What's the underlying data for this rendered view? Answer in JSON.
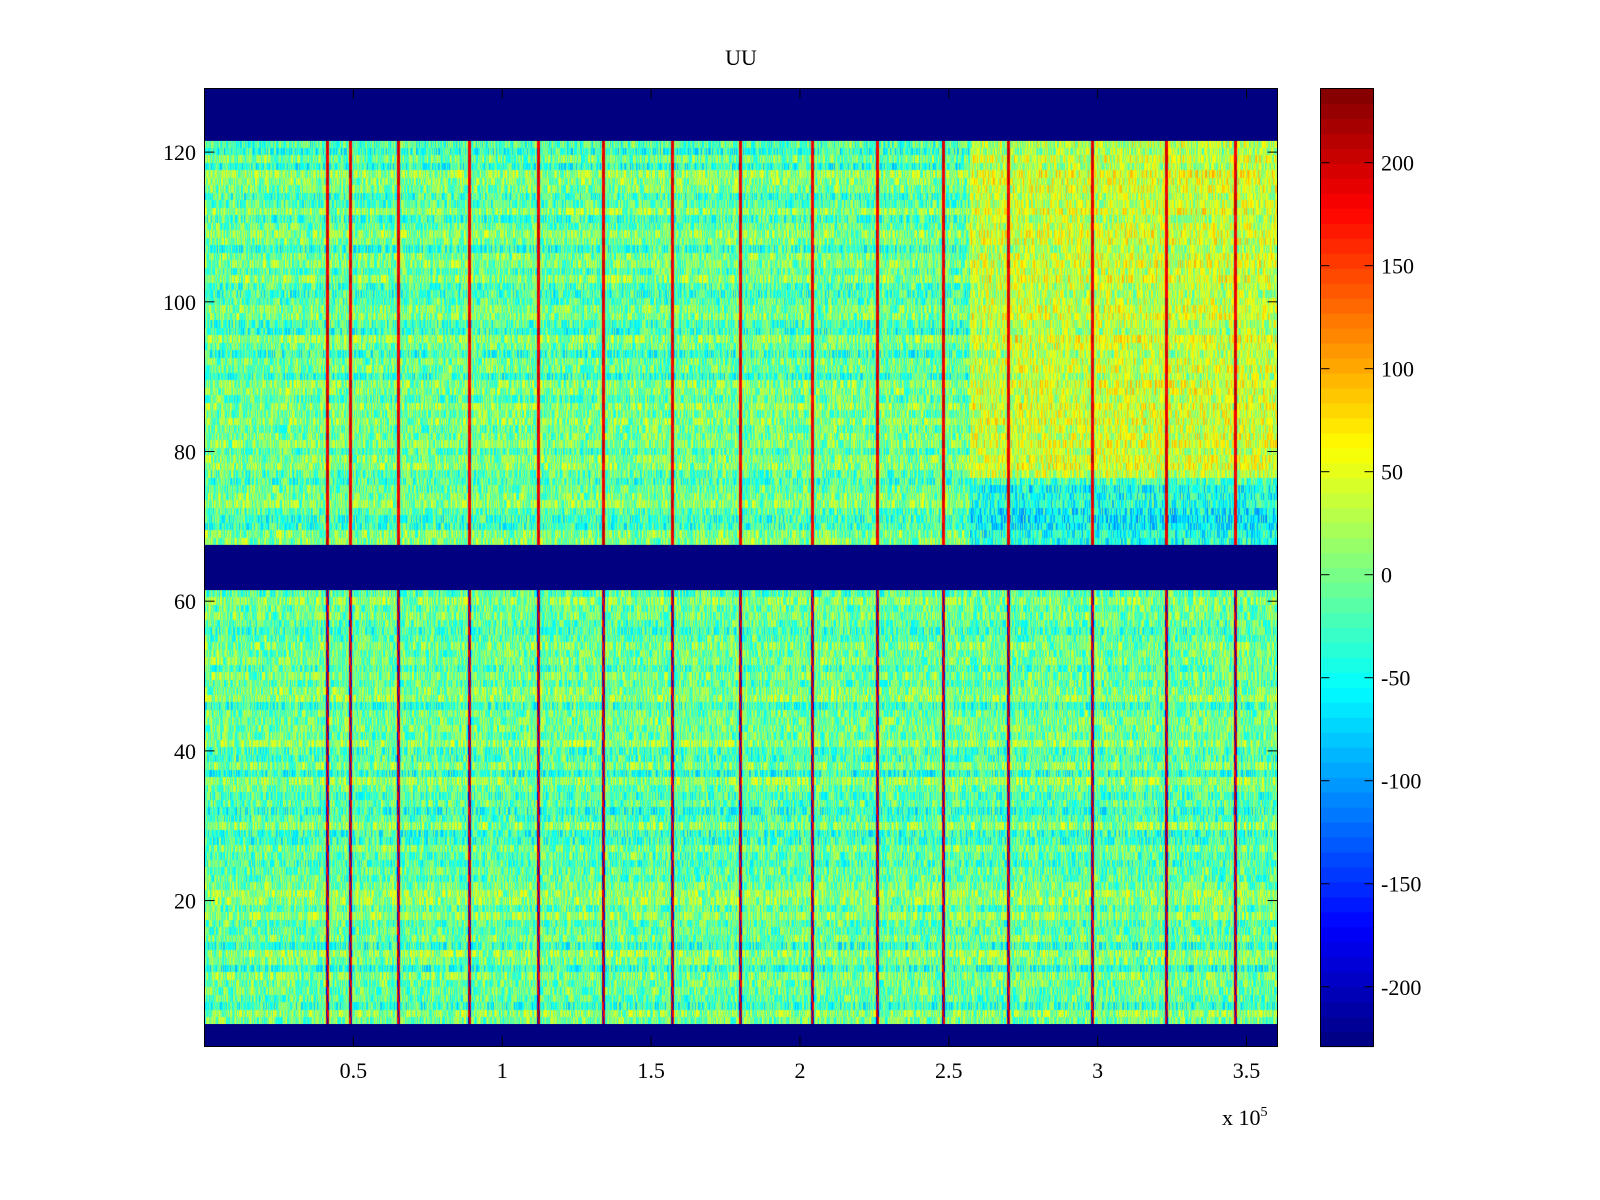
{
  "chart_data": {
    "type": "heatmap",
    "title": "UU",
    "xlabel": "",
    "ylabel": "",
    "x_exponent_label": {
      "base": "x 10",
      "exp": "5"
    },
    "xlim": [
      0,
      360400
    ],
    "ylim": [
      0.5,
      128.5
    ],
    "x_ticks": [
      50000,
      100000,
      150000,
      200000,
      250000,
      300000,
      350000
    ],
    "x_tick_labels": [
      "0.5",
      "1",
      "1.5",
      "2",
      "2.5",
      "3",
      "3.5"
    ],
    "y_ticks": [
      20,
      40,
      60,
      80,
      100,
      120
    ],
    "y_tick_labels": [
      "20",
      "40",
      "60",
      "80",
      "100",
      "120"
    ],
    "colormap": "jet",
    "clim": [
      -229,
      236
    ],
    "colorbar": {
      "ticks": [
        -200,
        -150,
        -100,
        -50,
        0,
        50,
        100,
        150,
        200
      ],
      "tick_labels": [
        "-200",
        "-150",
        "-100",
        "-50",
        "0",
        "50",
        "100",
        "150",
        "200"
      ],
      "placement": "right"
    },
    "empty_row_bands": [
      [
        1,
        3
      ],
      [
        62,
        67
      ],
      [
        122,
        128
      ]
    ],
    "spike_columns_x": [
      41000,
      49000,
      65000,
      89000,
      112000,
      134000,
      157000,
      180000,
      204000,
      226000,
      248000,
      270000,
      298000,
      323000,
      346000
    ],
    "background_mean": -10,
    "regions": [
      {
        "x_range": [
          257000,
          360400
        ],
        "rows": [
          77,
          121
        ],
        "mean": 35
      },
      {
        "x_range": [
          257000,
          360400
        ],
        "rows": [
          68,
          75
        ],
        "mean": -50
      }
    ]
  }
}
